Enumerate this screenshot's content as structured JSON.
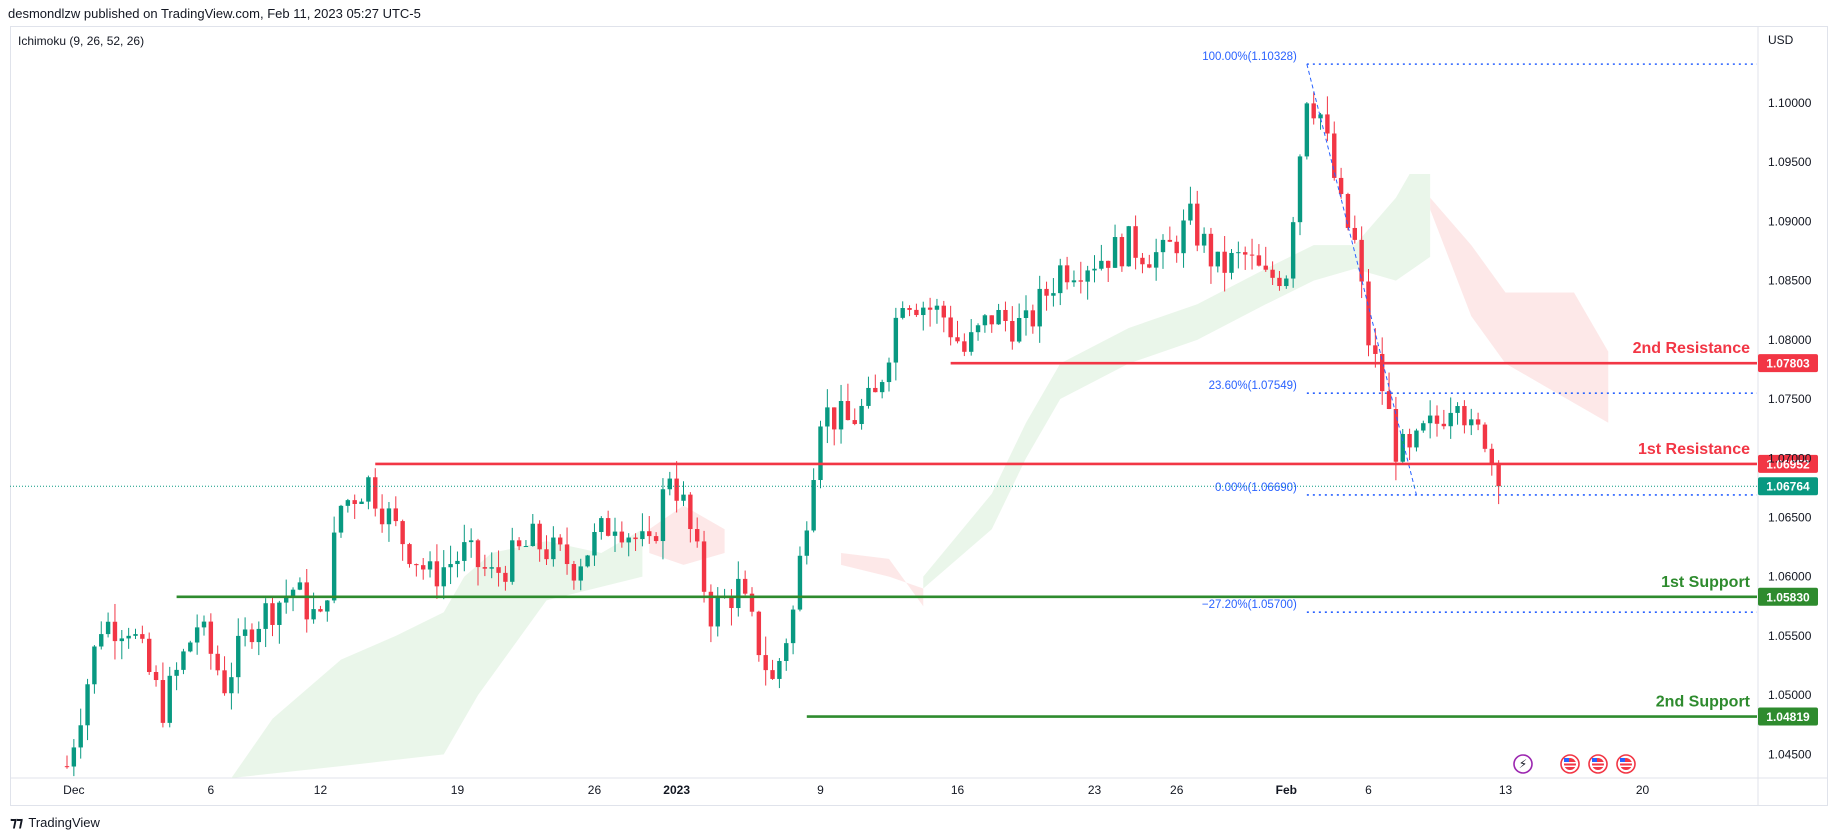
{
  "header": {
    "publisher": "desmondlzw published on TradingView.com, Feb 11, 2023 05:27 UTC-5"
  },
  "indicator": {
    "label": "Ichimoku (9, 26, 52, 26)"
  },
  "footer": {
    "brand": "TradingView"
  },
  "colors": {
    "up": "#089981",
    "down": "#f23645",
    "resistance": "#f23645",
    "support": "#2e8b2e",
    "fib": "#2962ff",
    "cloud_bull": "#e6f4e6",
    "cloud_bear": "#fde4e4"
  },
  "chart_data": {
    "type": "candlestick",
    "symbol_currency": "USD",
    "ylim": [
      1.043,
      1.1065
    ],
    "y_ticks": [
      "1.10000",
      "1.09500",
      "1.09000",
      "1.08500",
      "1.08000",
      "1.07500",
      "1.07000",
      "1.06500",
      "1.06000",
      "1.05500",
      "1.05000",
      "1.04500"
    ],
    "y_tick_values": [
      1.1,
      1.095,
      1.09,
      1.085,
      1.08,
      1.075,
      1.07,
      1.065,
      1.06,
      1.055,
      1.05,
      1.045
    ],
    "x_ticks": [
      {
        "label": "Dec",
        "bar": 1
      },
      {
        "label": "6",
        "bar": 21
      },
      {
        "label": "12",
        "bar": 37
      },
      {
        "label": "19",
        "bar": 57
      },
      {
        "label": "26",
        "bar": 77
      },
      {
        "label": "2023",
        "bar": 89
      },
      {
        "label": "9",
        "bar": 110
      },
      {
        "label": "16",
        "bar": 130
      },
      {
        "label": "23",
        "bar": 150
      },
      {
        "label": "26",
        "bar": 162
      },
      {
        "label": "Feb",
        "bar": 178
      },
      {
        "label": "6",
        "bar": 190
      },
      {
        "label": "13",
        "bar": 210
      },
      {
        "label": "20",
        "bar": 230
      }
    ],
    "price_path": [
      [
        0,
        1.044
      ],
      [
        5,
        1.056
      ],
      [
        9,
        1.056
      ],
      [
        14,
        1.049
      ],
      [
        19,
        1.056
      ],
      [
        23,
        1.051
      ],
      [
        27,
        1.056
      ],
      [
        33,
        1.059
      ],
      [
        37,
        1.056
      ],
      [
        40,
        1.066
      ],
      [
        44,
        1.068
      ],
      [
        48,
        1.064
      ],
      [
        53,
        1.06
      ],
      [
        58,
        1.062
      ],
      [
        62,
        1.06
      ],
      [
        68,
        1.063
      ],
      [
        74,
        1.061
      ],
      [
        80,
        1.065
      ],
      [
        85,
        1.062
      ],
      [
        88,
        1.069
      ],
      [
        90,
        1.066
      ],
      [
        94,
        1.057
      ],
      [
        98,
        1.059
      ],
      [
        103,
        1.051
      ],
      [
        106,
        1.057
      ],
      [
        110,
        1.074
      ],
      [
        114,
        1.073
      ],
      [
        118,
        1.075
      ],
      [
        122,
        1.084
      ],
      [
        128,
        1.082
      ],
      [
        131,
        1.079
      ],
      [
        135,
        1.082
      ],
      [
        140,
        1.081
      ],
      [
        145,
        1.086
      ],
      [
        151,
        1.087
      ],
      [
        155,
        1.088
      ],
      [
        160,
        1.087
      ],
      [
        164,
        1.09
      ],
      [
        168,
        1.086
      ],
      [
        172,
        1.087
      ],
      [
        175,
        1.085
      ],
      [
        178,
        1.086
      ],
      [
        181,
        1.101
      ],
      [
        183,
        1.099
      ],
      [
        186,
        1.091
      ],
      [
        188,
        1.088
      ],
      [
        190,
        1.08
      ],
      [
        192,
        1.076
      ],
      [
        194,
        1.071
      ],
      [
        196,
        1.07
      ],
      [
        198,
        1.072
      ],
      [
        200,
        1.073
      ],
      [
        203,
        1.076
      ],
      [
        205,
        1.072
      ],
      [
        207,
        1.072
      ],
      [
        209,
        1.0676
      ]
    ],
    "levels": [
      {
        "name": "2nd Resistance",
        "value": 1.07803,
        "tag": "1.07803",
        "kind": "resistance",
        "from_bar": 129
      },
      {
        "name": "1st Resistance",
        "value": 1.06952,
        "tag": "1.06952",
        "kind": "resistance",
        "from_bar": 45
      },
      {
        "name": "1st Support",
        "value": 1.0583,
        "tag": "1.05830",
        "kind": "support",
        "from_bar": 16
      },
      {
        "name": "2nd Support",
        "value": 1.04819,
        "tag": "1.04819",
        "kind": "support",
        "from_bar": 108
      }
    ],
    "fib_levels": [
      {
        "label": "100.00%(1.10328)",
        "value": 1.10328
      },
      {
        "label": "23.60%(1.07549)",
        "value": 1.07549
      },
      {
        "label": "0.00%(1.06690)",
        "value": 1.0669
      },
      {
        "label": "−27.20%(1.05700)",
        "value": 1.057
      }
    ],
    "fib_from_bar": 181,
    "last_price": {
      "value": 1.06764,
      "tag": "1.06764"
    },
    "cloud": [
      {
        "kind": "bull",
        "points": [
          [
            24,
            1.043
          ],
          [
            30,
            1.048
          ],
          [
            40,
            1.053
          ],
          [
            48,
            1.055
          ],
          [
            55,
            1.057
          ],
          [
            58,
            1.06
          ],
          [
            62,
            1.062
          ],
          [
            70,
            1.063
          ],
          [
            78,
            1.062
          ],
          [
            84,
            1.064
          ]
        ],
        "base": [
          [
            24,
            1.043
          ],
          [
            40,
            1.044
          ],
          [
            55,
            1.045
          ],
          [
            60,
            1.05
          ],
          [
            70,
            1.058
          ],
          [
            84,
            1.06
          ]
        ]
      },
      {
        "kind": "bear",
        "points": [
          [
            85,
            1.064
          ],
          [
            90,
            1.066
          ],
          [
            96,
            1.064
          ]
        ],
        "base": [
          [
            85,
            1.062
          ],
          [
            90,
            1.061
          ],
          [
            96,
            1.062
          ]
        ]
      },
      {
        "kind": "bear",
        "points": [
          [
            113,
            1.061
          ],
          [
            120,
            1.06
          ],
          [
            125,
            1.059
          ]
        ],
        "base": [
          [
            113,
            1.062
          ],
          [
            120,
            1.0615
          ],
          [
            125,
            1.0575
          ]
        ]
      },
      {
        "kind": "bull",
        "points": [
          [
            125,
            1.06
          ],
          [
            135,
            1.067
          ],
          [
            140,
            1.073
          ],
          [
            145,
            1.078
          ],
          [
            155,
            1.081
          ],
          [
            165,
            1.083
          ],
          [
            175,
            1.086
          ],
          [
            182,
            1.088
          ],
          [
            188,
            1.088
          ],
          [
            194,
            1.092
          ],
          [
            196,
            1.094
          ],
          [
            199,
            1.094
          ]
        ],
        "base": [
          [
            125,
            1.059
          ],
          [
            135,
            1.064
          ],
          [
            140,
            1.07
          ],
          [
            145,
            1.075
          ],
          [
            155,
            1.078
          ],
          [
            165,
            1.08
          ],
          [
            175,
            1.083
          ],
          [
            182,
            1.085
          ],
          [
            188,
            1.086
          ],
          [
            194,
            1.085
          ],
          [
            199,
            1.087
          ]
        ]
      },
      {
        "kind": "bear",
        "points": [
          [
            199,
            1.092
          ],
          [
            205,
            1.088
          ],
          [
            210,
            1.084
          ],
          [
            220,
            1.084
          ],
          [
            225,
            1.079
          ]
        ],
        "base": [
          [
            199,
            1.091
          ],
          [
            205,
            1.082
          ],
          [
            210,
            1.078
          ],
          [
            216,
            1.076
          ],
          [
            222,
            1.074
          ],
          [
            225,
            1.073
          ]
        ]
      }
    ],
    "event_icons": 4
  }
}
